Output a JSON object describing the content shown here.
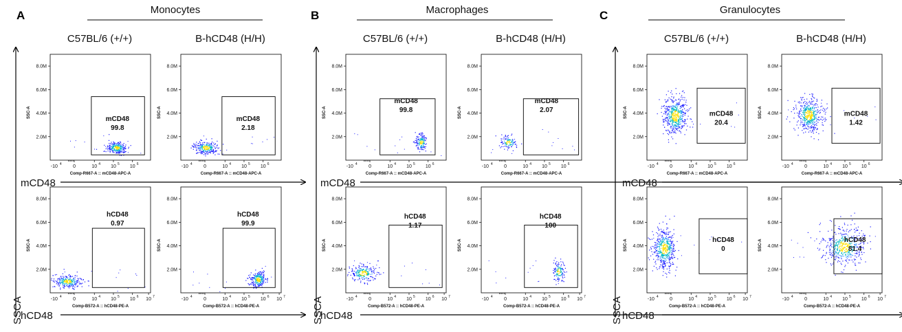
{
  "panels": [
    {
      "label": "A",
      "title": "Monocytes",
      "columns": [
        "C57BL/6 (+/+)",
        "B-hCD48 (H/H)"
      ]
    },
    {
      "label": "B",
      "title": "Macrophages",
      "columns": [
        "C57BL/6 (+/+)",
        "B-hCD48 (H/H)"
      ]
    },
    {
      "label": "C",
      "title": "Granulocytes",
      "columns": [
        "C57BL/6 (+/+)",
        "B-hCD48 (H/H)"
      ]
    }
  ],
  "big_axes": {
    "y_label": "SSCA",
    "row_labels": [
      "mCD48",
      "hCD48"
    ]
  },
  "axis_text": {
    "y_ticks": [
      "2.0M",
      "4.0M",
      "6.0M",
      "8.0M"
    ],
    "y_label": "SSC-A",
    "x_ticks": [
      "0",
      "10",
      "10",
      "10",
      "10"
    ],
    "x_tick_exponents": [
      "",
      "4",
      "5",
      "6",
      "7"
    ],
    "x_neg_tick": "-10",
    "x_neg_exp": "4",
    "x_label_row1": "Comp-R667-A :: mCD48-APC-A",
    "x_label_row2": "Comp-B572-A :: hCD48-PE-A"
  },
  "colors": {
    "dot_low": "#1a1aff",
    "dot_mid": "#00b8c0",
    "dot_high": "#ffe000",
    "gate": "#000000"
  },
  "chart_data": [
    {
      "type": "scatter",
      "panel": "Monocytes",
      "strain": "C57BL/6 (+/+)",
      "marker": "mCD48",
      "gate_value": "99.8",
      "ylim": [
        0,
        9
      ],
      "y_unit": "M"
    },
    {
      "type": "scatter",
      "panel": "Monocytes",
      "strain": "B-hCD48 (H/H)",
      "marker": "mCD48",
      "gate_value": "2.18",
      "ylim": [
        0,
        9
      ],
      "y_unit": "M"
    },
    {
      "type": "scatter",
      "panel": "Monocytes",
      "strain": "C57BL/6 (+/+)",
      "marker": "hCD48",
      "gate_value": "0.97",
      "ylim": [
        0,
        9
      ],
      "y_unit": "M"
    },
    {
      "type": "scatter",
      "panel": "Monocytes",
      "strain": "B-hCD48 (H/H)",
      "marker": "hCD48",
      "gate_value": "99.9",
      "ylim": [
        0,
        9
      ],
      "y_unit": "M"
    },
    {
      "type": "scatter",
      "panel": "Macrophages",
      "strain": "C57BL/6 (+/+)",
      "marker": "mCD48",
      "gate_value": "99.8",
      "ylim": [
        0,
        9
      ],
      "y_unit": "M"
    },
    {
      "type": "scatter",
      "panel": "Macrophages",
      "strain": "B-hCD48 (H/H)",
      "marker": "mCD48",
      "gate_value": "2.07",
      "ylim": [
        0,
        9
      ],
      "y_unit": "M"
    },
    {
      "type": "scatter",
      "panel": "Macrophages",
      "strain": "C57BL/6 (+/+)",
      "marker": "hCD48",
      "gate_value": "1.17",
      "ylim": [
        0,
        9
      ],
      "y_unit": "M"
    },
    {
      "type": "scatter",
      "panel": "Macrophages",
      "strain": "B-hCD48 (H/H)",
      "marker": "hCD48",
      "gate_value": "100",
      "ylim": [
        0,
        9
      ],
      "y_unit": "M"
    },
    {
      "type": "scatter",
      "panel": "Granulocytes",
      "strain": "C57BL/6 (+/+)",
      "marker": "mCD48",
      "gate_value": "20.4",
      "ylim": [
        0,
        9
      ],
      "y_unit": "M"
    },
    {
      "type": "scatter",
      "panel": "Granulocytes",
      "strain": "B-hCD48 (H/H)",
      "marker": "mCD48",
      "gate_value": "1.42",
      "ylim": [
        0,
        9
      ],
      "y_unit": "M"
    },
    {
      "type": "scatter",
      "panel": "Granulocytes",
      "strain": "C57BL/6 (+/+)",
      "marker": "hCD48",
      "gate_value": "0",
      "ylim": [
        0,
        9
      ],
      "y_unit": "M"
    },
    {
      "type": "scatter",
      "panel": "Granulocytes",
      "strain": "B-hCD48 (H/H)",
      "marker": "hCD48",
      "gate_value": "81.4",
      "ylim": [
        0,
        9
      ],
      "y_unit": "M"
    }
  ]
}
